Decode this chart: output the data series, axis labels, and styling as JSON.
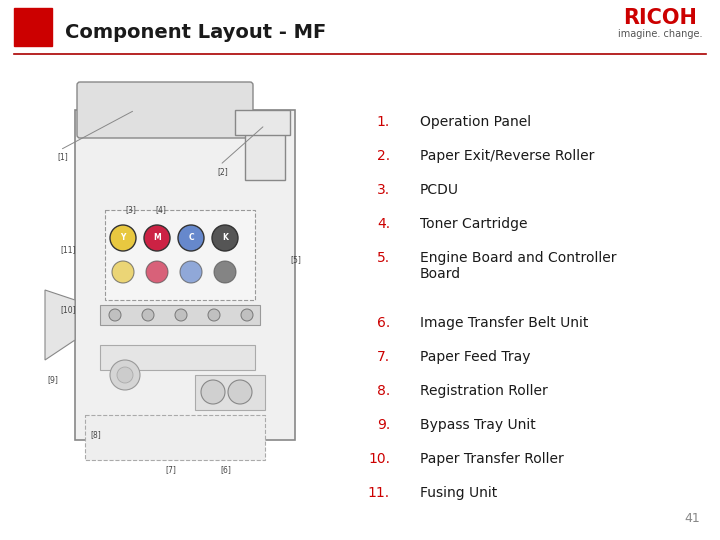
{
  "title": "Component Layout - MF",
  "title_fontsize": 14,
  "title_fontweight": "bold",
  "bg_color": "#ffffff",
  "header_line_color": "#aa0000",
  "red_color": "#cc0000",
  "square_color": "#cc0000",
  "ricoh_color": "#cc0000",
  "items": [
    {
      "num": "1.",
      "text": "Operation Panel"
    },
    {
      "num": "2.",
      "text": "Paper Exit/Reverse Roller"
    },
    {
      "num": "3.",
      "text": "PCDU"
    },
    {
      "num": "4.",
      "text": "Toner Cartridge"
    },
    {
      "num": "5.",
      "text": "Engine Board and Controller\nBoard"
    },
    {
      "num": "6.",
      "text": "Image Transfer Belt Unit"
    },
    {
      "num": "7.",
      "text": "Paper Feed Tray"
    },
    {
      "num": "8.",
      "text": "Registration Roller"
    },
    {
      "num": "9.",
      "text": "Bypass Tray Unit"
    },
    {
      "num": "10.",
      "text": "Paper Transfer Roller"
    },
    {
      "num": "11.",
      "text": "Fusing Unit"
    }
  ],
  "page_number": "41",
  "diagram_color": "#888888",
  "diagram_fill": "#f0f0f0",
  "toner_colors": [
    "#e8c840",
    "#cc2244",
    "#6688cc",
    "#555555"
  ],
  "toner_labels": [
    "Y",
    "M",
    "C",
    "K"
  ]
}
